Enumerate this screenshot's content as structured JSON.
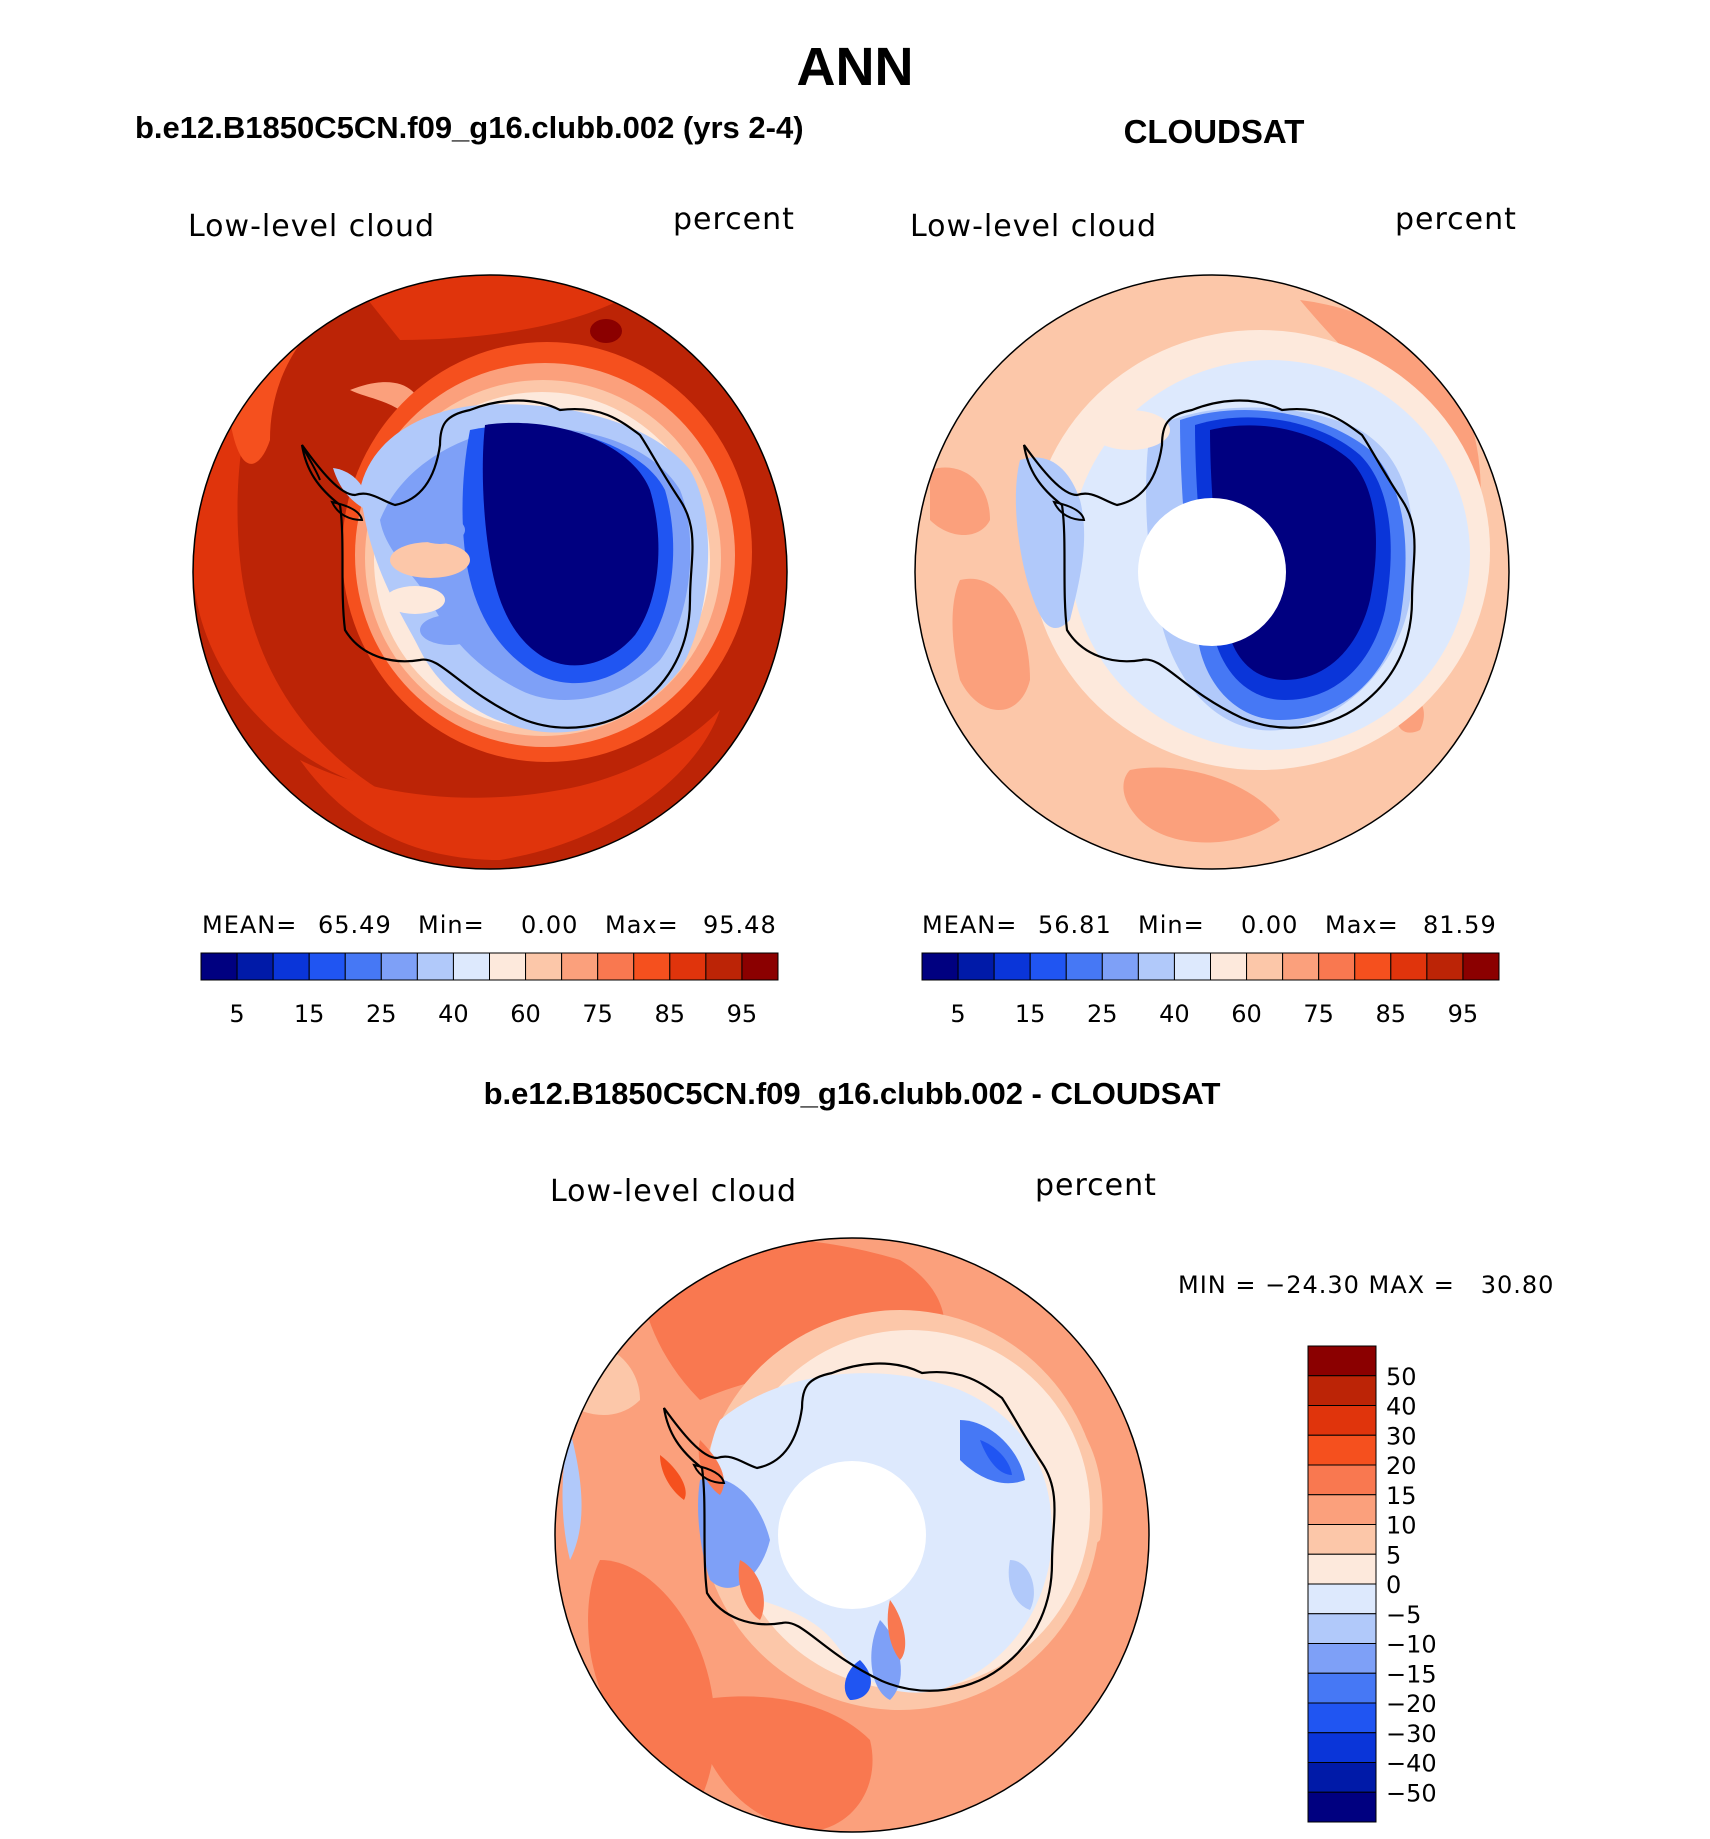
{
  "figure": {
    "main_title": "ANN",
    "panels": [
      {
        "case_title": "b.e12.B1850C5CN.f09_g16.clubb.002 (yrs 2-4)",
        "variable_label": "Low-level cloud",
        "units_label": "percent",
        "stats": {
          "mean_label": "MEAN=",
          "mean_value": "65.49",
          "min_label": "Min=",
          "min_value": "0.00",
          "max_label": "Max=",
          "max_value": "95.48"
        },
        "has_pole_hole": false
      },
      {
        "case_title": "CLOUDSAT",
        "variable_label": "Low-level cloud",
        "units_label": "percent",
        "stats": {
          "mean_label": "MEAN=",
          "mean_value": "56.81",
          "min_label": "Min=",
          "min_value": "0.00",
          "max_label": "Max=",
          "max_value": "81.59"
        },
        "has_pole_hole": true
      },
      {
        "case_title": "b.e12.B1850C5CN.f09_g16.clubb.002 - CLOUDSAT",
        "variable_label": "Low-level cloud",
        "units_label": "percent",
        "stats": {
          "min_max_text": "MIN = −24.30 MAX =   30.80"
        },
        "has_pole_hole": true
      }
    ],
    "abs_colorbar": {
      "colors": [
        "#000080",
        "#001aa8",
        "#0a35d9",
        "#2055f2",
        "#4678f5",
        "#7ea0f7",
        "#b1c9fa",
        "#dde9fd",
        "#fde9dc",
        "#fcc7a9",
        "#fba07c",
        "#f97850",
        "#f5501e",
        "#e0340c",
        "#bc2406",
        "#8b0000"
      ],
      "tick_labels": [
        "5",
        "15",
        "25",
        "40",
        "60",
        "75",
        "85",
        "95"
      ]
    },
    "diff_colorbar": {
      "colors": [
        "#000080",
        "#001aa8",
        "#0a35d9",
        "#2055f2",
        "#4678f5",
        "#7ea0f7",
        "#b1c9fa",
        "#dde9fd",
        "#fde9dc",
        "#fcc7a9",
        "#fba07c",
        "#f97850",
        "#f5501e",
        "#e0340c",
        "#bc2406",
        "#8b0000"
      ],
      "tick_labels": [
        "50",
        "40",
        "30",
        "20",
        "15",
        "10",
        "5",
        "0",
        "−5",
        "−10",
        "−15",
        "−20",
        "−30",
        "−40",
        "−50"
      ]
    }
  }
}
